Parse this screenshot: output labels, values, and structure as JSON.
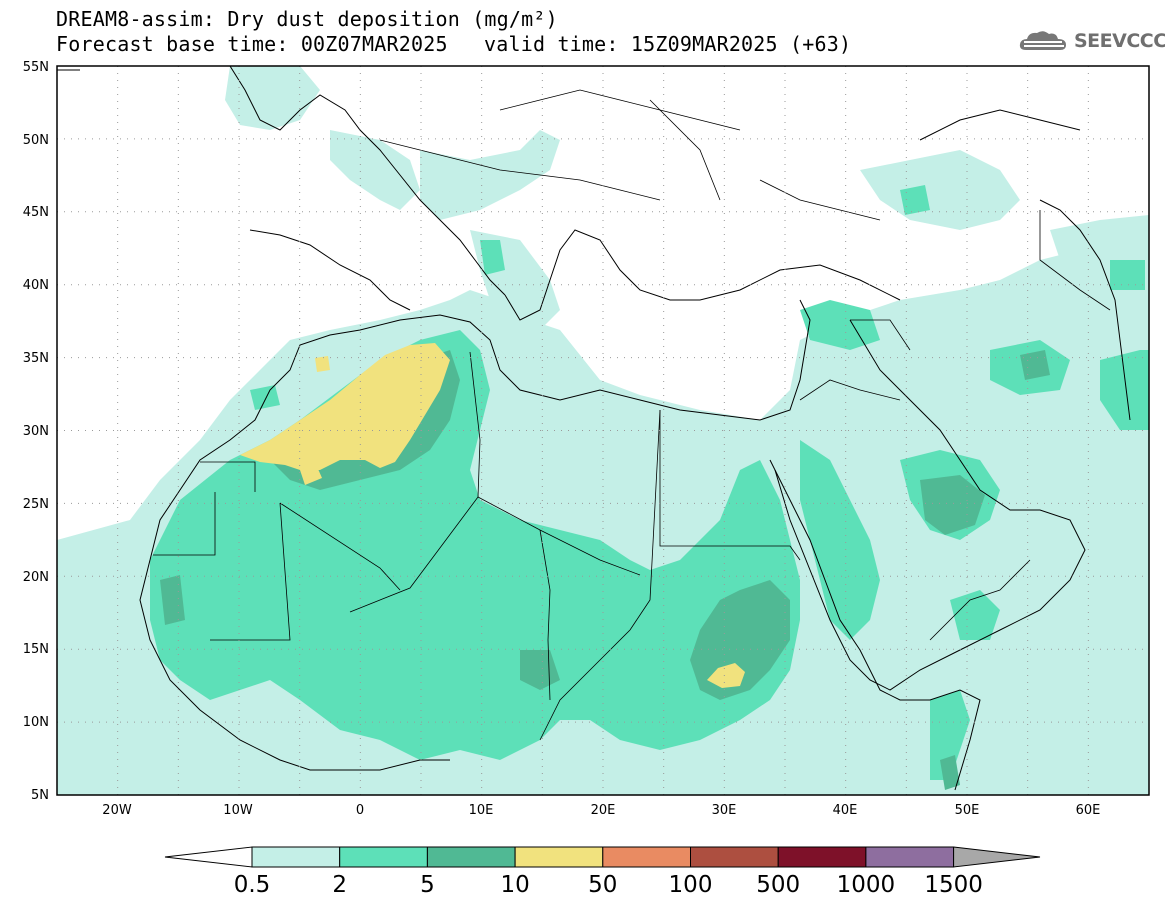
{
  "header": {
    "title_line1": "DREAM8-assim: Dry dust deposition (mg/m²)",
    "base_time": "Forecast base time: 00Z07MAR2025",
    "valid_time": "valid time: 15Z09MAR2025 (+63)"
  },
  "logo": {
    "text": "SEEVCCC",
    "icon": "cloud-logo-icon"
  },
  "map": {
    "lon_range": [
      -25,
      65
    ],
    "lat_range": [
      5,
      55
    ],
    "lat_labels": [
      "55N",
      "50N",
      "45N",
      "40N",
      "35N",
      "30N",
      "25N",
      "20N",
      "15N",
      "10N",
      "5N"
    ],
    "lon_labels": [
      "20W",
      "10W",
      "0",
      "10E",
      "20E",
      "30E",
      "40E",
      "50E",
      "60E"
    ],
    "grid": "dotted"
  },
  "colorbar": {
    "labels": [
      "0.5",
      "2",
      "5",
      "10",
      "50",
      "100",
      "500",
      "1000",
      "1500"
    ],
    "colors": [
      "#c4efe7",
      "#5de0b8",
      "#50b994",
      "#f1e27e",
      "#e98b62",
      "#ad4f40",
      "#7e1129",
      "#8e6e9f"
    ],
    "under_color": "#ffffff",
    "over_color": "#a8a8a8"
  }
}
